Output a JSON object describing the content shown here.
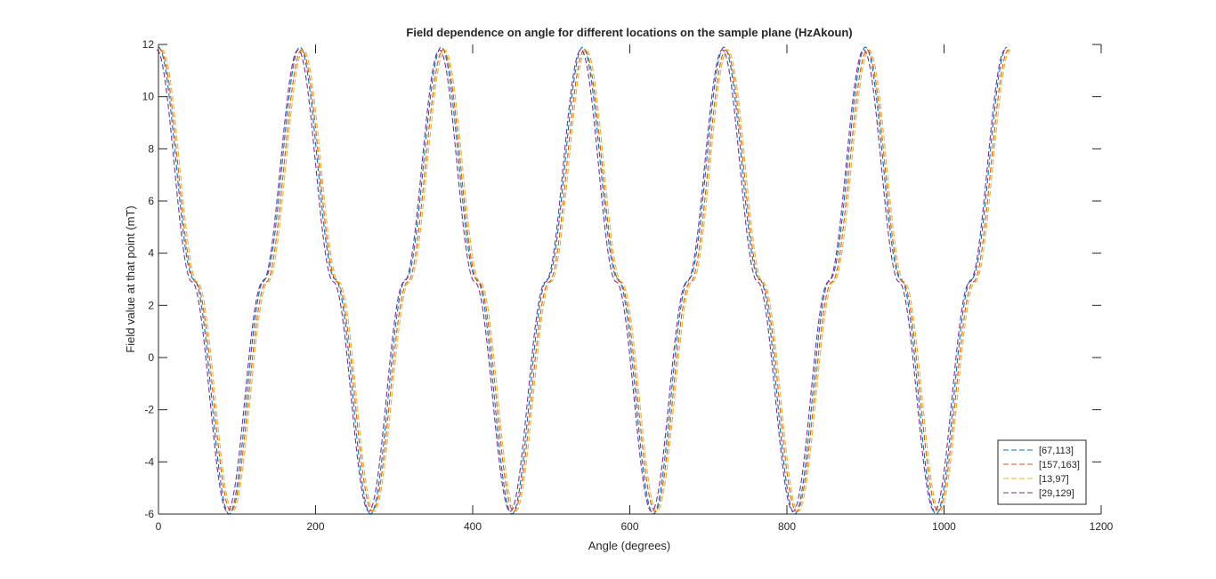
{
  "chart_data": {
    "type": "line",
    "title": "Field dependence on angle for different locations on the sample plane (HzAkoun)",
    "xlabel": "Angle (degrees)",
    "ylabel": "Field value at that point (mT)",
    "xlim": [
      0,
      1200
    ],
    "ylim": [
      -6,
      12
    ],
    "xticks": [
      0,
      200,
      400,
      600,
      800,
      1000,
      1200
    ],
    "yticks": [
      -6,
      -4,
      -2,
      0,
      2,
      4,
      6,
      8,
      10,
      12
    ],
    "xtick_labels": [
      "0",
      "200",
      "400",
      "600",
      "800",
      "1000",
      "1200"
    ],
    "ytick_labels": [
      "-6",
      "-4",
      "-2",
      "0",
      "2",
      "4",
      "6",
      "8",
      "10",
      "12"
    ],
    "grid": false,
    "legend_position": "bottom-right",
    "line_style": "dashed",
    "x": [
      0,
      45,
      90,
      135,
      180,
      225,
      270,
      315,
      360,
      405,
      450,
      495,
      540,
      585,
      630,
      675,
      720,
      765,
      810,
      855,
      900,
      945,
      990,
      1035,
      1080
    ],
    "series": [
      {
        "name": "[67,113]",
        "color": "#0072BD",
        "values": [
          11.9,
          3.0,
          -6.0,
          3.0,
          11.9,
          3.0,
          -6.0,
          3.0,
          11.9,
          3.0,
          -6.0,
          3.0,
          11.9,
          3.0,
          -6.0,
          3.0,
          11.9,
          3.0,
          -6.0,
          3.0,
          11.9,
          3.0,
          -6.0,
          3.0,
          11.9
        ]
      },
      {
        "name": "[157,163]",
        "color": "#D95319",
        "values": [
          11.8,
          2.9,
          -5.9,
          2.9,
          11.8,
          2.9,
          -5.9,
          2.9,
          11.8,
          2.9,
          -5.9,
          2.9,
          11.8,
          2.9,
          -5.9,
          2.9,
          11.8,
          2.9,
          -5.9,
          2.9,
          11.8,
          2.9,
          -5.9,
          2.9,
          11.8
        ]
      },
      {
        "name": "[13,97]",
        "color": "#EDB120",
        "values": [
          11.8,
          2.9,
          -5.9,
          2.9,
          11.8,
          2.9,
          -5.9,
          2.9,
          11.8,
          2.9,
          -5.9,
          2.9,
          11.8,
          2.9,
          -5.9,
          2.9,
          11.8,
          2.9,
          -5.9,
          2.9,
          11.8,
          2.9,
          -5.9,
          2.9,
          11.8
        ]
      },
      {
        "name": "[29,129]",
        "color": "#7E2F8E",
        "values": [
          11.8,
          2.9,
          -5.9,
          2.9,
          11.8,
          2.9,
          -5.9,
          2.9,
          11.8,
          2.9,
          -5.9,
          2.9,
          11.8,
          2.9,
          -5.9,
          2.9,
          11.8,
          2.9,
          -5.9,
          2.9,
          11.8,
          2.9,
          -5.9,
          2.9,
          11.8
        ]
      }
    ]
  }
}
